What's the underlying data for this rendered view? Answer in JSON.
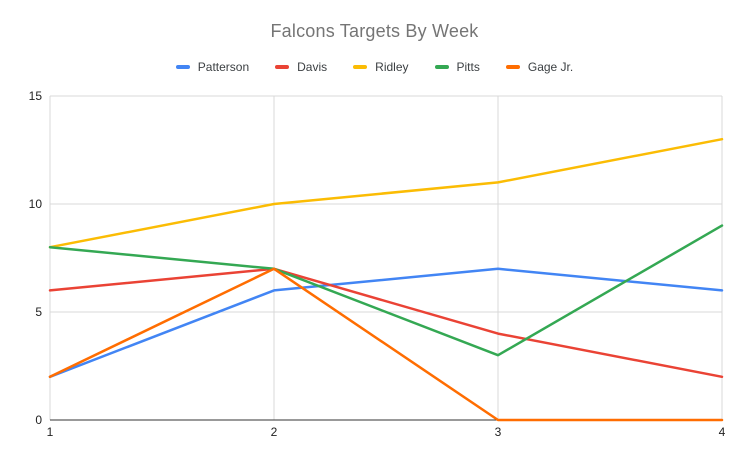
{
  "chart_data": {
    "type": "line",
    "title": "Falcons Targets By Week",
    "xlabel": "",
    "ylabel": "",
    "x": [
      1,
      2,
      3,
      4
    ],
    "xtick_labels": [
      "1",
      "2",
      "3",
      "4"
    ],
    "yticks": [
      0,
      5,
      10,
      15
    ],
    "ylim": [
      0,
      15
    ],
    "grid": true,
    "legend_position": "top",
    "series": [
      {
        "name": "Patterson",
        "color": "#4285F4",
        "values": [
          2,
          6,
          7,
          6
        ]
      },
      {
        "name": "Davis",
        "color": "#EA4335",
        "values": [
          6,
          7,
          4,
          2
        ]
      },
      {
        "name": "Ridley",
        "color": "#FBBC04",
        "values": [
          8,
          10,
          11,
          13
        ]
      },
      {
        "name": "Pitts",
        "color": "#34A853",
        "values": [
          8,
          7,
          3,
          9
        ]
      },
      {
        "name": "Gage Jr.",
        "color": "#FF6D01",
        "values": [
          2,
          7,
          0,
          0
        ]
      }
    ],
    "colors": {
      "background": "#ffffff",
      "gridline": "#d9d9d9",
      "axis_line": "#333333",
      "tick_label": "#222222",
      "title": "#757575",
      "legend_text": "#3c4043"
    }
  }
}
